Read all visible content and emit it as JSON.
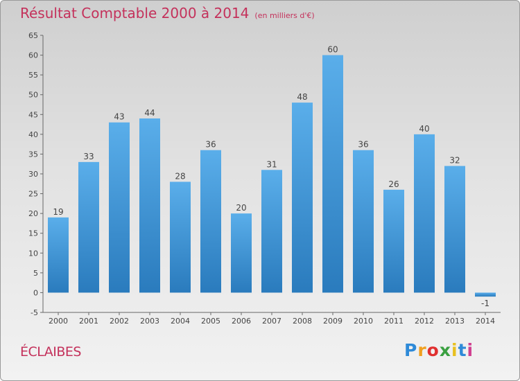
{
  "title": "Résultat Comptable 2000 à 2014",
  "subtitle": "(en milliers d'€)",
  "commune": "ÉCLAIBES",
  "logo": {
    "text": "Proxiti",
    "letter_colors": [
      "#2e8ad8",
      "#f0a020",
      "#e03030",
      "#3aa040",
      "#e8c020",
      "#2e8ad8",
      "#d04090"
    ]
  },
  "colors": {
    "bar_top": "#5aaeea",
    "bar_bottom": "#2a7bbd",
    "title": "#c4315b",
    "axis": "#666666"
  },
  "chart_data": {
    "type": "bar",
    "title": "Résultat Comptable 2000 à 2014",
    "subtitle": "(en milliers d'€)",
    "categories": [
      "2000",
      "2001",
      "2002",
      "2003",
      "2004",
      "2005",
      "2006",
      "2007",
      "2008",
      "2009",
      "2010",
      "2011",
      "2012",
      "2013",
      "2014"
    ],
    "values": [
      19,
      33,
      43,
      44,
      28,
      36,
      20,
      31,
      48,
      60,
      36,
      26,
      40,
      32,
      -1
    ],
    "data_labels": [
      "19",
      "33",
      "43",
      "44",
      "28",
      "36",
      "20",
      "31",
      "48",
      "60",
      "36",
      "26",
      "40",
      "32",
      "-1"
    ],
    "ylim": [
      -5,
      65
    ],
    "yticks": [
      -5,
      0,
      5,
      10,
      15,
      20,
      25,
      30,
      35,
      40,
      45,
      50,
      55,
      60,
      65
    ],
    "grid": false,
    "legend": "none"
  }
}
